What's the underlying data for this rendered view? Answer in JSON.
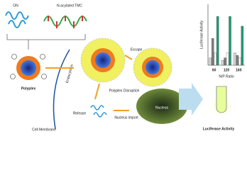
{
  "labels": {
    "on": "ON",
    "tmc": "N-acylated TMC",
    "polyplex": "Polyplex",
    "endocytosis": "Endocytosis",
    "membrane": "Cell Membrane",
    "escape": "Escape",
    "disruption": "Polyplex Disruption",
    "release": "Release",
    "import": "Nucleus import",
    "nucleus": "Nucleus",
    "result": "Luciferase Activity"
  },
  "chart_data": {
    "type": "bar",
    "y_label": "Luciferase Activity",
    "x_label": "N/P Ratio",
    "categories": [
      "60",
      "120",
      "160"
    ],
    "ylim": [
      0,
      25
    ],
    "series": [
      {
        "color": "#d9d9d9",
        "values": [
          3,
          2,
          5
        ]
      },
      {
        "color": "#7f7f7f",
        "values": [
          11,
          3,
          4
        ]
      },
      {
        "color": "#ffffff",
        "values": [
          5,
          5,
          3
        ]
      },
      {
        "color": "#1f9e6f",
        "values": [
          20,
          20,
          16
        ]
      }
    ]
  }
}
